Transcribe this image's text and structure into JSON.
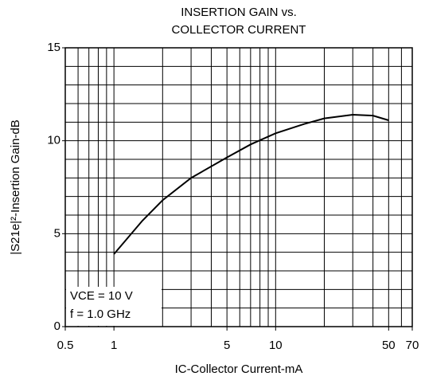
{
  "chart_data": {
    "type": "line",
    "title": [
      "INSERTION GAIN vs.",
      "COLLECTOR CURRENT"
    ],
    "xlabel": "IC-Collector Current-mA",
    "ylabel": "|S21e|²-Insertion Gain-dB",
    "annotations": [
      "VCE = 10 V",
      "f = 1.0 GHz"
    ],
    "xscale": "log",
    "xlim": [
      0.5,
      70
    ],
    "xticks": [
      0.5,
      1,
      5,
      10,
      50,
      70
    ],
    "ylim": [
      0,
      15
    ],
    "yticks": [
      0,
      5,
      10,
      15
    ],
    "grid": true,
    "series": [
      {
        "color": "#000000",
        "x": [
          1,
          1.5,
          2,
          3,
          5,
          7,
          10,
          15,
          20,
          30,
          40,
          50
        ],
        "values": [
          3.9,
          5.7,
          6.8,
          8.0,
          9.1,
          9.8,
          10.4,
          10.9,
          11.2,
          11.4,
          11.35,
          11.1
        ]
      }
    ]
  }
}
